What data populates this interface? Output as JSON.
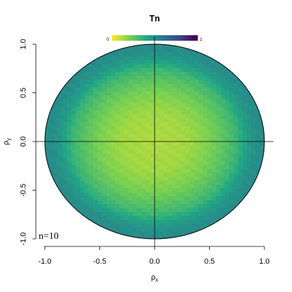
{
  "chart_data": {
    "type": "heatmap",
    "title": "Tn",
    "xlabel_main": "ρ",
    "xlabel_sub": "x",
    "ylabel_main": "ρ",
    "ylabel_sub": "y",
    "xlim": [
      -1.05,
      1.05
    ],
    "ylim": [
      -1.05,
      1.05
    ],
    "x_ticks": [
      -1.0,
      -0.5,
      0.0,
      0.5,
      1.0
    ],
    "x_tick_labels": [
      "-1.0",
      "-0.5",
      "0.0",
      "0.5",
      "1.0"
    ],
    "y_ticks": [
      -1.0,
      -0.5,
      0.0,
      0.5,
      1.0
    ],
    "y_tick_labels": [
      "-1.0",
      "-0.5",
      "0.0",
      "0.5",
      "1.0"
    ],
    "colorbar": {
      "min_label": "0",
      "max_label": "1",
      "min": 0,
      "max": 1,
      "colormap": "viridis-reversed",
      "placement": "top"
    },
    "annotation": "n=10",
    "region": "unit disk",
    "value_profile_by_radius": {
      "radius": [
        0.0,
        0.3,
        0.5,
        0.65,
        0.75,
        0.85,
        0.92,
        1.0
      ],
      "value": [
        0.12,
        0.14,
        0.2,
        0.28,
        0.34,
        0.45,
        0.5,
        0.52
      ]
    }
  }
}
